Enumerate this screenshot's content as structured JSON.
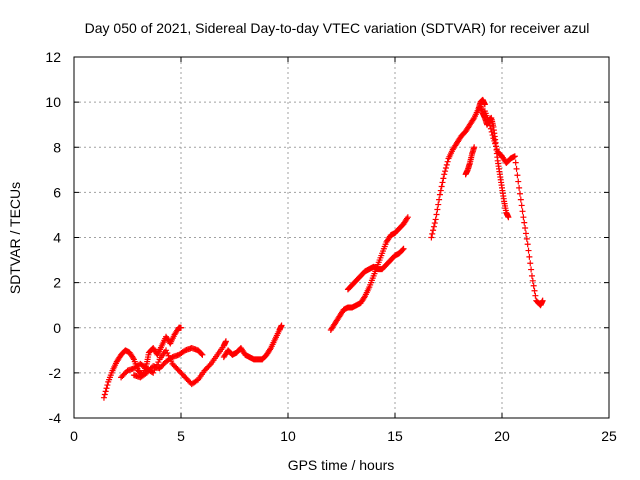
{
  "chart_data": {
    "type": "scatter",
    "title": "Day 050 of 2021, Sidereal Day-to-day VTEC variation (SDTVAR) for receiver azul",
    "xlabel": "GPS time / hours",
    "ylabel": "SDTVAR / TECUs",
    "xlim": [
      0,
      25
    ],
    "ylim": [
      -4,
      12
    ],
    "xticks": [
      0,
      5,
      10,
      15,
      20,
      25
    ],
    "yticks": [
      -4,
      -2,
      0,
      2,
      4,
      6,
      8,
      10,
      12
    ],
    "grid": true,
    "marker": "+",
    "color": "#ff0000",
    "series": [
      {
        "name": "SDTVAR",
        "segments": [
          {
            "x": [
              1.4,
              1.6,
              1.8,
              2.0,
              2.2,
              2.4,
              2.6,
              2.8,
              3.0,
              3.2,
              3.4,
              3.5,
              3.7,
              3.9,
              4.1,
              4.3,
              4.5,
              4.7,
              4.9,
              5.0
            ],
            "y": [
              -3.1,
              -2.4,
              -1.9,
              -1.5,
              -1.2,
              -1.0,
              -1.1,
              -1.4,
              -1.9,
              -2.1,
              -1.6,
              -1.1,
              -0.9,
              -1.2,
              -0.8,
              -0.4,
              -0.7,
              -0.3,
              0.0,
              0.0
            ]
          },
          {
            "x": [
              2.2,
              2.5,
              2.8,
              3.1,
              3.4,
              3.7,
              4.0,
              4.3,
              4.6,
              4.9,
              5.2,
              5.5,
              5.8,
              6.1,
              6.4,
              6.7,
              7.0,
              7.1
            ],
            "y": [
              -2.2,
              -1.9,
              -1.8,
              -1.6,
              -1.8,
              -2.0,
              -1.4,
              -1.0,
              -1.6,
              -1.9,
              -2.2,
              -2.5,
              -2.3,
              -1.9,
              -1.6,
              -1.2,
              -0.8,
              -0.6
            ]
          },
          {
            "x": [
              2.8,
              3.1,
              3.4,
              3.7,
              4.0,
              4.3,
              4.6,
              4.9,
              5.2,
              5.5,
              5.8,
              6.0
            ],
            "y": [
              -2.1,
              -2.2,
              -2.0,
              -1.7,
              -1.8,
              -1.5,
              -1.3,
              -1.2,
              -1.0,
              -0.9,
              -1.0,
              -1.2
            ]
          },
          {
            "x": [
              7.0,
              7.2,
              7.4,
              7.6,
              7.8,
              8.0,
              8.2,
              8.4,
              8.6,
              8.8,
              9.0,
              9.2,
              9.4,
              9.6,
              9.7
            ],
            "y": [
              -1.3,
              -1.0,
              -1.2,
              -1.1,
              -0.9,
              -1.2,
              -1.3,
              -1.4,
              -1.4,
              -1.4,
              -1.2,
              -0.9,
              -0.5,
              -0.1,
              0.1
            ]
          },
          {
            "x": [
              12.0,
              12.2,
              12.4,
              12.6,
              12.8,
              13.0,
              13.2,
              13.4,
              13.6,
              13.8,
              14.0,
              14.2,
              14.4,
              14.6,
              14.8,
              15.0,
              15.2,
              15.4,
              15.6
            ],
            "y": [
              -0.1,
              0.2,
              0.5,
              0.8,
              0.9,
              0.9,
              1.0,
              1.1,
              1.4,
              1.8,
              2.3,
              2.8,
              3.3,
              3.8,
              4.1,
              4.2,
              4.4,
              4.6,
              4.9
            ]
          },
          {
            "x": [
              12.8,
              13.0,
              13.2,
              13.4,
              13.6,
              13.8,
              14.0,
              14.2,
              14.4,
              14.6,
              14.8,
              15.0,
              15.2,
              15.4
            ],
            "y": [
              1.7,
              1.9,
              2.1,
              2.3,
              2.5,
              2.6,
              2.7,
              2.6,
              2.6,
              2.8,
              3.0,
              3.2,
              3.3,
              3.5
            ]
          },
          {
            "x": [
              16.7,
              16.9,
              17.1,
              17.3,
              17.5,
              17.7,
              17.9,
              18.1,
              18.3,
              18.5,
              18.7,
              18.9,
              19.0,
              19.1,
              19.2
            ],
            "y": [
              4.0,
              4.8,
              5.9,
              6.8,
              7.5,
              7.9,
              8.2,
              8.5,
              8.7,
              9.0,
              9.3,
              9.7,
              10.0,
              10.1,
              9.9
            ]
          },
          {
            "x": [
              18.3,
              18.4,
              18.5,
              18.6,
              18.7
            ],
            "y": [
              6.8,
              7.0,
              7.3,
              7.7,
              8.0
            ]
          },
          {
            "x": [
              19.0,
              19.1,
              19.2,
              19.3,
              19.4,
              19.5,
              19.6,
              19.7,
              19.8,
              19.9,
              20.0,
              20.1,
              20.2,
              20.3
            ],
            "y": [
              9.8,
              9.5,
              9.3,
              9.0,
              9.2,
              9.3,
              8.9,
              8.2,
              7.4,
              6.8,
              6.2,
              5.6,
              5.1,
              4.9
            ]
          },
          {
            "x": [
              19.2,
              19.4,
              19.6,
              19.8,
              20.0,
              20.2,
              20.4,
              20.6,
              20.8,
              21.0,
              21.2,
              21.4,
              21.6,
              21.8,
              21.9
            ],
            "y": [
              9.6,
              9.1,
              8.4,
              7.8,
              7.6,
              7.3,
              7.5,
              7.6,
              6.2,
              4.9,
              3.7,
              2.3,
              1.2,
              1.0,
              1.2
            ]
          }
        ]
      }
    ]
  }
}
